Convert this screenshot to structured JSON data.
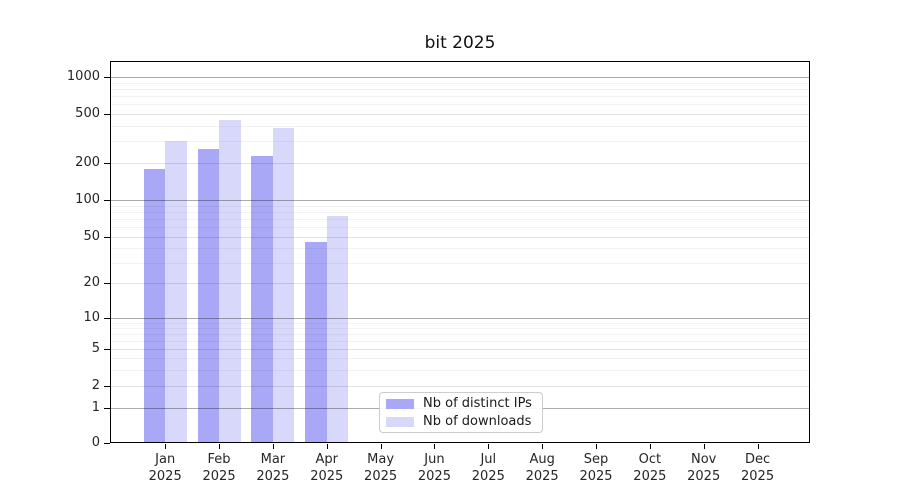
{
  "chart_data": {
    "type": "bar",
    "title": "bit 2025",
    "categories": [
      "Jan 2025",
      "Feb 2025",
      "Mar 2025",
      "Apr 2025",
      "May 2025",
      "Jun 2025",
      "Jul 2025",
      "Aug 2025",
      "Sep 2025",
      "Oct 2025",
      "Nov 2025",
      "Dec 2025"
    ],
    "series": [
      {
        "name": "Nb of distinct IPs",
        "color": "#a8a8f6",
        "values": [
          180,
          260,
          230,
          45,
          0,
          0,
          0,
          0,
          0,
          0,
          0,
          0
        ]
      },
      {
        "name": "Nb of downloads",
        "color": "#d8d8fa",
        "values": [
          300,
          450,
          385,
          74,
          0,
          0,
          0,
          0,
          0,
          0,
          0,
          0
        ]
      }
    ],
    "xlabel": "",
    "ylabel": "",
    "yscale": "symlog",
    "yticks": [
      0,
      1,
      2,
      5,
      10,
      20,
      50,
      100,
      200,
      500,
      1000
    ],
    "ylim": [
      0,
      1300
    ],
    "grid": true,
    "legend_position": "lower center"
  }
}
